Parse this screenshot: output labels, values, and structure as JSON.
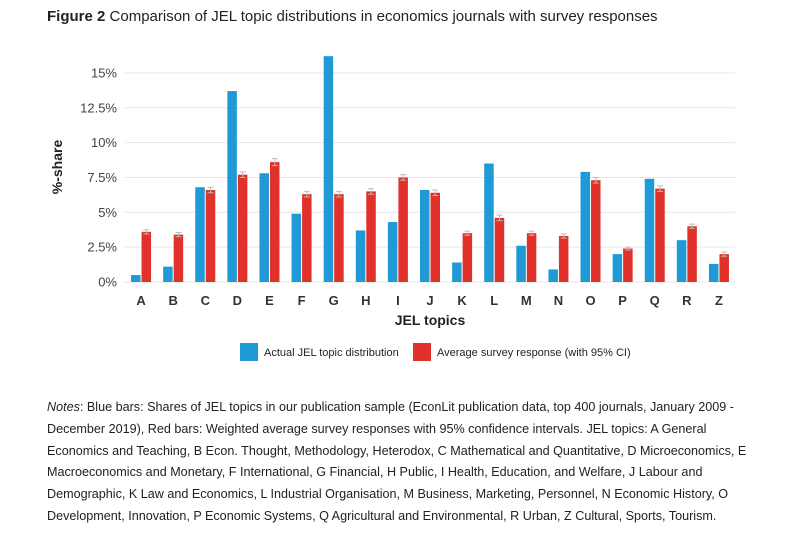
{
  "figure": {
    "label": "Figure 2",
    "title": "Comparison of JEL topic distributions in economics journals with survey responses"
  },
  "chart_data": {
    "type": "bar",
    "xlabel": "JEL topics",
    "ylabel": "%-share",
    "ylim": [
      0,
      16.5
    ],
    "yticks": [
      0,
      2.5,
      5,
      7.5,
      10,
      12.5,
      15
    ],
    "ytick_labels": [
      "0%",
      "2.5%",
      "5%",
      "7.5%",
      "10%",
      "12.5%",
      "15%"
    ],
    "grid": true,
    "legend_position": "bottom",
    "categories": [
      "A",
      "B",
      "C",
      "D",
      "E",
      "F",
      "G",
      "H",
      "I",
      "J",
      "K",
      "L",
      "M",
      "N",
      "O",
      "P",
      "Q",
      "R",
      "Z"
    ],
    "series": [
      {
        "name": "Actual JEL topic distribution",
        "color": "#1f9ad6",
        "values": [
          0.5,
          1.1,
          6.8,
          13.7,
          7.8,
          4.9,
          16.2,
          3.7,
          4.3,
          6.6,
          1.4,
          8.5,
          2.6,
          0.9,
          7.9,
          2.0,
          7.4,
          3.0,
          1.3
        ]
      },
      {
        "name": "Average survey response (with 95% CI)",
        "color": "#e0312b",
        "values": [
          3.6,
          3.4,
          6.6,
          7.7,
          8.6,
          6.3,
          6.3,
          6.5,
          7.5,
          6.4,
          3.5,
          4.6,
          3.5,
          3.3,
          7.3,
          2.4,
          6.7,
          4.0,
          2.0
        ],
        "ci": [
          0.15,
          0.15,
          0.2,
          0.2,
          0.25,
          0.2,
          0.2,
          0.2,
          0.2,
          0.2,
          0.15,
          0.2,
          0.15,
          0.15,
          0.2,
          0.1,
          0.2,
          0.15,
          0.15
        ]
      }
    ]
  },
  "notes": {
    "label": "Notes",
    "text": ": Blue bars: Shares of JEL topics in our publication sample (EconLit publication data, top 400 journals, January 2009 - December 2019), Red bars: Weighted average survey responses with 95% confidence intervals. JEL topics: A General Economics and Teaching, B Econ. Thought, Methodology, Heterodox, C Mathematical and Quantitative, D Microeconomics, E Macroeconomics and Monetary, F International, G Financial, H Public, I Health, Education, and Welfare, J Labour and Demographic, K Law and Economics, L Industrial Organisation, M Business, Marketing, Personnel, N Economic History, O Development, Innovation, P Economic Systems, Q Agricultural and Environmental, R Urban, Z Cultural, Sports, Tourism."
  }
}
